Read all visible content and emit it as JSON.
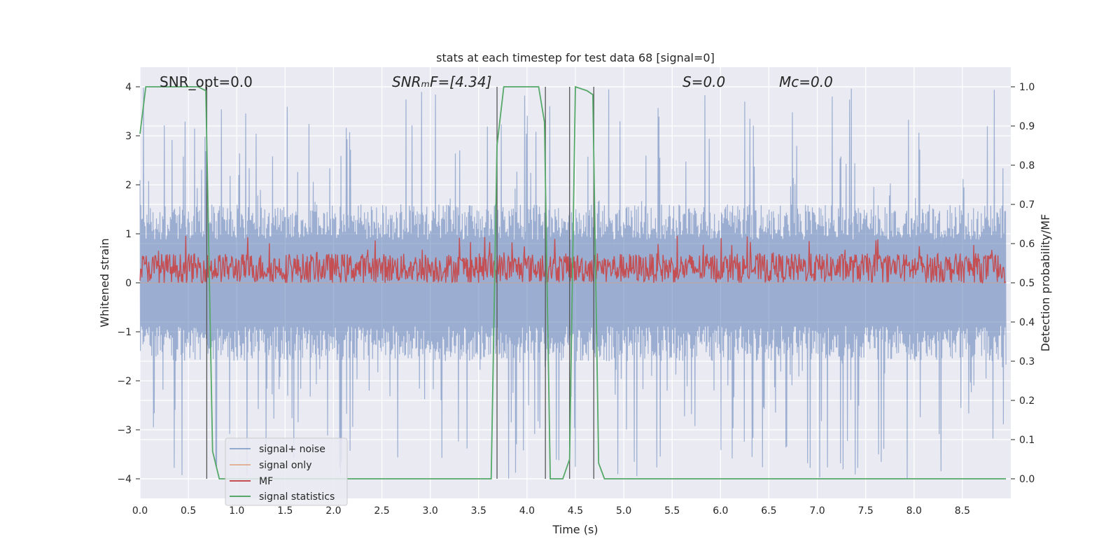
{
  "chart_data": {
    "type": "line",
    "title": "stats at each timestep for test data 68 [signal=0]",
    "xlabel": "Time (s)",
    "ylabel": "Whitened strain",
    "y2label": "Detection probability/MF",
    "xlim": [
      0.0,
      9.0
    ],
    "ylim": [
      -4.4,
      4.4
    ],
    "y2lim": [
      -0.05,
      1.05
    ],
    "xticks": [
      "0.0",
      "0.5",
      "1.0",
      "1.5",
      "2.0",
      "2.5",
      "3.0",
      "3.5",
      "4.0",
      "4.5",
      "5.0",
      "5.5",
      "6.0",
      "6.5",
      "7.0",
      "7.5",
      "8.0",
      "8.5"
    ],
    "yticks": [
      "4",
      "3",
      "2",
      "1",
      "0",
      "−1",
      "−2",
      "−3",
      "−4"
    ],
    "y2ticks": [
      "1.0",
      "0.9",
      "0.8",
      "0.7",
      "0.6",
      "0.5",
      "0.4",
      "0.3",
      "0.2",
      "0.1",
      "0.0"
    ],
    "grid": true,
    "legend_position": "lower-left",
    "annotations": [
      {
        "id": "snr-opt",
        "text": "SNR_opt=0.0"
      },
      {
        "id": "snr-mf",
        "text": "SNRₘF=[4.34]"
      },
      {
        "id": "s",
        "text": "S=0.0"
      },
      {
        "id": "mc",
        "text": "Mᴄ=0.0"
      }
    ],
    "series": [
      {
        "name": "signal+ noise",
        "color": "#4c72b0",
        "axis": "left",
        "kind": "noise",
        "amplitude_typical": 1.6,
        "amplitude_max": 4.0
      },
      {
        "name": "signal only",
        "color": "#dd8452",
        "axis": "left",
        "kind": "flat",
        "values": [
          0.0
        ]
      },
      {
        "name": "MF",
        "color": "#c44e52",
        "axis": "right",
        "kind": "noise",
        "baseline": 0.5,
        "amplitude_max": 0.62
      },
      {
        "name": "signal statistics",
        "color": "#55a868",
        "axis": "right",
        "kind": "line",
        "x": [
          0.0,
          0.06,
          0.12,
          0.6,
          0.68,
          0.75,
          0.82,
          3.63,
          3.69,
          3.76,
          4.12,
          4.18,
          4.24,
          4.37,
          4.44,
          4.5,
          4.62,
          4.68,
          4.74,
          4.8,
          8.95
        ],
        "y": [
          0.88,
          1.0,
          1.0,
          1.0,
          0.99,
          0.07,
          0.0,
          0.0,
          0.85,
          1.0,
          1.0,
          0.91,
          0.0,
          0.0,
          0.05,
          1.0,
          0.99,
          0.98,
          0.04,
          0.0,
          0.0
        ]
      }
    ],
    "vlines_x": [
      0.69,
      3.69,
      4.19,
      4.44,
      4.69
    ]
  }
}
